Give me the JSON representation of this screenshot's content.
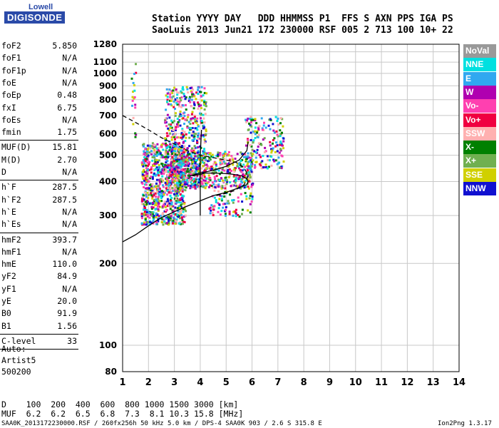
{
  "logo": {
    "line1": "Lowell",
    "line2": "DIGISONDE"
  },
  "header": {
    "line1": "Station YYYY DAY   DDD HHMMSS P1  FFS S AXN PPS IGA PS",
    "line2": "SaoLuis 2013 Jun21 172 230000 RSF 005 2 713 100 10+ 22"
  },
  "params1": [
    {
      "k": "foF2",
      "v": "5.850"
    },
    {
      "k": "foF1",
      "v": "N/A"
    },
    {
      "k": "foF1p",
      "v": "N/A"
    },
    {
      "k": "foE",
      "v": "N/A"
    },
    {
      "k": "foEp",
      "v": "0.48"
    },
    {
      "k": "fxI",
      "v": "6.75"
    },
    {
      "k": "foEs",
      "v": "N/A"
    },
    {
      "k": "fmin",
      "v": "1.75"
    }
  ],
  "params2": [
    {
      "k": "MUF(D)",
      "v": "15.81"
    },
    {
      "k": "M(D)",
      "v": "2.70"
    },
    {
      "k": "D",
      "v": "N/A"
    }
  ],
  "params3": [
    {
      "k": "h`F",
      "v": "287.5"
    },
    {
      "k": "h`F2",
      "v": "287.5"
    },
    {
      "k": "h`E",
      "v": "N/A"
    },
    {
      "k": "h`Es",
      "v": "N/A"
    }
  ],
  "params4": [
    {
      "k": "hmF2",
      "v": "393.7"
    },
    {
      "k": "hmF1",
      "v": "N/A"
    },
    {
      "k": "hmE",
      "v": "110.0"
    },
    {
      "k": "yF2",
      "v": "84.9"
    },
    {
      "k": "yF1",
      "v": "N/A"
    },
    {
      "k": "yE",
      "v": "20.0"
    },
    {
      "k": "B0",
      "v": "91.9"
    },
    {
      "k": "B1",
      "v": "1.56"
    }
  ],
  "params5": [
    {
      "k": "C-level",
      "v": "33"
    }
  ],
  "autoscale": {
    "l1": "Auto:",
    "l2": "Artist5",
    "l3": "500200"
  },
  "legend": [
    {
      "label": "NoVal",
      "color": "#999999"
    },
    {
      "label": "NNE",
      "color": "#00e0e0"
    },
    {
      "label": "E",
      "color": "#30a8f0"
    },
    {
      "label": "W",
      "color": "#b000b0"
    },
    {
      "label": "Vo-",
      "color": "#ff40b0"
    },
    {
      "label": "Vo+",
      "color": "#f00040"
    },
    {
      "label": "SSW",
      "color": "#ffb0b0"
    },
    {
      "label": "X-",
      "color": "#008000"
    },
    {
      "label": "X+",
      "color": "#70b050"
    },
    {
      "label": "SSE",
      "color": "#d0d000"
    },
    {
      "label": "NNW",
      "color": "#1010d0"
    }
  ],
  "footer": {
    "d_row": "D    100  200  400  600  800 1000 1500 3000 [km]",
    "muf_row": "MUF  6.2  6.2  6.5  6.8  7.3  8.1 10.3 15.8 [MHz]",
    "file": "SAA0K_2013172230000.RSF / 260fx256h 50 kHz 5.0 km / DPS-4 SAA0K 903 / 2.6 S 315.8 E",
    "version": "Ion2Png 1.3.17"
  },
  "chart_data": {
    "type": "scatter",
    "xlim": [
      1,
      14
    ],
    "ylim_log": [
      80,
      1280
    ],
    "x_ticks": [
      "1",
      "2",
      "3",
      "4",
      "5",
      "6",
      "7",
      "8",
      "9",
      "10",
      "11",
      "12",
      "13",
      "14"
    ],
    "y_ticks": [
      {
        "v": 80,
        "label": "80"
      },
      {
        "v": 100,
        "label": "100"
      },
      {
        "v": 200,
        "label": "200"
      },
      {
        "v": 300,
        "label": "300"
      },
      {
        "v": 400,
        "label": "400"
      },
      {
        "v": 500,
        "label": "500"
      },
      {
        "v": 600,
        "label": "600"
      },
      {
        "v": 700,
        "label": "700"
      },
      {
        "v": 800,
        "label": "800"
      },
      {
        "v": 900,
        "label": "900"
      },
      {
        "v": 1000,
        "label": "1000"
      },
      {
        "v": 1100,
        "label": "1100"
      },
      {
        "v": 1280,
        "label": "1280"
      }
    ],
    "extra_y_grid": [
      1200
    ],
    "traces": [
      {
        "name": "profile",
        "style": "solid",
        "x": [
          1.0,
          1.5,
          2.0,
          2.5,
          3.0,
          3.5,
          4.0,
          4.5,
          5.0,
          5.5,
          5.8,
          5.85
        ],
        "y": [
          240,
          255,
          275,
          295,
          310,
          325,
          340,
          355,
          365,
          380,
          390,
          400
        ]
      },
      {
        "name": "profile-upper",
        "style": "solid",
        "x": [
          5.85,
          5.8,
          5.6,
          5.3,
          5.0,
          4.5,
          4.2,
          4.0,
          3.7
        ],
        "y": [
          400,
          410,
          420,
          425,
          428,
          430,
          430,
          425,
          420
        ]
      },
      {
        "name": "trace-x-virtual",
        "style": "solid",
        "x": [
          3.6,
          4.0,
          4.5,
          5.0,
          5.5,
          5.8,
          5.85
        ],
        "y": [
          420,
          430,
          440,
          455,
          480,
          520,
          560
        ]
      },
      {
        "name": "trace-vertical",
        "style": "solid",
        "x": [
          4.0,
          4.0,
          4.0,
          4.05
        ],
        "y": [
          300,
          400,
          500,
          620
        ]
      },
      {
        "name": "dashed-envelope",
        "style": "dashed",
        "x": [
          1.0,
          1.5,
          2.0,
          2.5,
          3.0,
          3.5,
          4.0,
          4.5,
          5.0,
          5.4,
          5.7,
          5.85,
          5.7,
          5.3,
          4.9,
          4.6
        ],
        "y": [
          700,
          660,
          620,
          580,
          550,
          520,
          500,
          490,
          480,
          470,
          450,
          420,
          390,
          370,
          360,
          355
        ]
      }
    ],
    "scatter_clusters": [
      {
        "xmin": 1.7,
        "xmax": 3.4,
        "ymin": 280,
        "ymax": 560,
        "n": 900
      },
      {
        "xmin": 2.6,
        "xmax": 4.2,
        "ymin": 380,
        "ymax": 900,
        "n": 550
      },
      {
        "xmin": 3.0,
        "xmax": 6.0,
        "ymin": 380,
        "ymax": 520,
        "n": 500
      },
      {
        "xmin": 5.7,
        "xmax": 7.2,
        "ymin": 450,
        "ymax": 700,
        "n": 180
      },
      {
        "xmin": 1.3,
        "xmax": 1.5,
        "ymin": 560,
        "ymax": 1100,
        "n": 20
      },
      {
        "xmin": 4.3,
        "xmax": 6.0,
        "ymin": 300,
        "ymax": 380,
        "n": 80
      }
    ]
  }
}
